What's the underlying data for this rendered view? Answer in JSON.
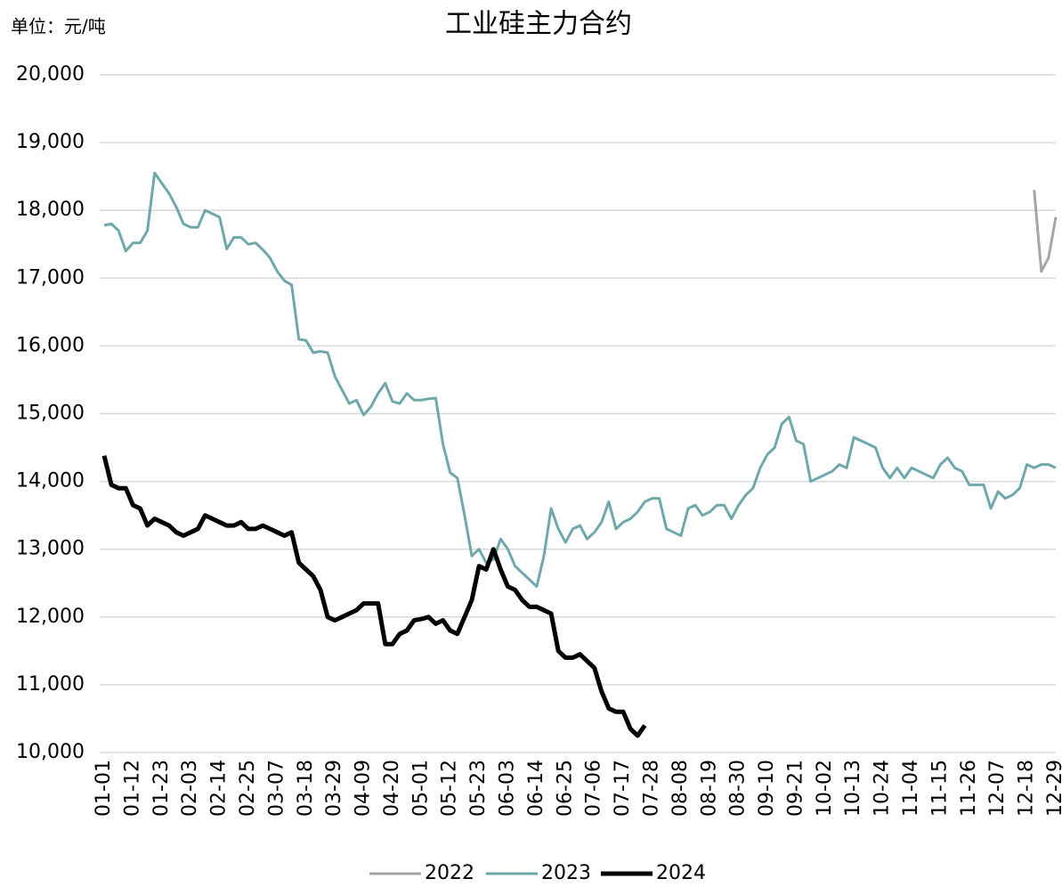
{
  "chart_data": {
    "type": "line",
    "title": "工业硅主力合约",
    "unit_label": "单位：元/吨",
    "categories": [
      "01-01",
      null,
      null,
      null,
      "01-12",
      null,
      null,
      null,
      "01-23",
      null,
      null,
      null,
      "02-03",
      null,
      null,
      null,
      "02-14",
      null,
      null,
      null,
      "02-25",
      null,
      null,
      null,
      "03-07",
      null,
      null,
      null,
      "03-18",
      null,
      null,
      null,
      "03-29",
      null,
      null,
      null,
      "04-09",
      null,
      null,
      null,
      "04-20",
      null,
      null,
      null,
      "05-01",
      null,
      null,
      null,
      "05-12",
      null,
      null,
      null,
      "05-23",
      null,
      null,
      null,
      "06-03",
      null,
      null,
      null,
      "06-14",
      null,
      null,
      null,
      "06-25",
      null,
      null,
      null,
      "07-06",
      null,
      null,
      null,
      "07-17",
      null,
      null,
      null,
      "07-28",
      null,
      null,
      null,
      "08-08",
      null,
      null,
      null,
      "08-19",
      null,
      null,
      null,
      "08-30",
      null,
      null,
      null,
      "09-10",
      null,
      null,
      null,
      "09-21",
      null,
      null,
      null,
      "10-02",
      null,
      null,
      null,
      "10-13",
      null,
      null,
      null,
      "10-24",
      null,
      null,
      null,
      "11-04",
      null,
      null,
      null,
      "11-15",
      null,
      null,
      null,
      "11-26",
      null,
      null,
      null,
      "12-07",
      null,
      null,
      null,
      "12-18",
      null,
      null,
      null,
      "12-29"
    ],
    "series": [
      {
        "name": "2022",
        "color": "#a6a6a6",
        "width": 3,
        "values": [
          null,
          null,
          null,
          null,
          null,
          null,
          null,
          null,
          null,
          null,
          null,
          null,
          null,
          null,
          null,
          null,
          null,
          null,
          null,
          null,
          null,
          null,
          null,
          null,
          null,
          null,
          null,
          null,
          null,
          null,
          null,
          null,
          null,
          null,
          null,
          null,
          null,
          null,
          null,
          null,
          null,
          null,
          null,
          null,
          null,
          null,
          null,
          null,
          null,
          null,
          null,
          null,
          null,
          null,
          null,
          null,
          null,
          null,
          null,
          null,
          null,
          null,
          null,
          null,
          null,
          null,
          null,
          null,
          null,
          null,
          null,
          null,
          null,
          null,
          null,
          null,
          null,
          null,
          null,
          null,
          null,
          null,
          null,
          null,
          null,
          null,
          null,
          null,
          null,
          null,
          null,
          null,
          null,
          null,
          null,
          null,
          null,
          null,
          null,
          null,
          null,
          null,
          null,
          null,
          null,
          null,
          null,
          null,
          null,
          null,
          null,
          null,
          null,
          null,
          null,
          null,
          null,
          null,
          null,
          null,
          null,
          null,
          null,
          null,
          null,
          null,
          null,
          null,
          null,
          18300,
          17100,
          17300,
          17900
        ]
      },
      {
        "name": "2023",
        "color": "#6fa8aa",
        "width": 3,
        "values": [
          17780,
          17800,
          17700,
          17400,
          17520,
          17520,
          17700,
          18550,
          18400,
          18250,
          18050,
          17800,
          17750,
          17750,
          18000,
          17950,
          17900,
          17430,
          17600,
          17600,
          17500,
          17520,
          17420,
          17300,
          17100,
          16960,
          16900,
          16100,
          16080,
          15900,
          15920,
          15900,
          15550,
          15350,
          15150,
          15200,
          14980,
          15100,
          15300,
          15450,
          15180,
          15150,
          15300,
          15200,
          15200,
          15220,
          15230,
          14550,
          14130,
          14050,
          13500,
          12900,
          13000,
          12800,
          12850,
          13150,
          13000,
          12750,
          12650,
          12550,
          12450,
          12900,
          13600,
          13300,
          13100,
          13300,
          13350,
          13150,
          13250,
          13400,
          13700,
          13300,
          13400,
          13450,
          13550,
          13700,
          13750,
          13750,
          13300,
          13250,
          13200,
          13600,
          13650,
          13500,
          13550,
          13650,
          13650,
          13450,
          13650,
          13800,
          13900,
          14200,
          14400,
          14500,
          14850,
          14950,
          14600,
          14550,
          14000,
          14050,
          14100,
          14150,
          14250,
          14200,
          14650,
          14600,
          14550,
          14500,
          14200,
          14050,
          14200,
          14050,
          14200,
          14150,
          14100,
          14050,
          14250,
          14350,
          14200,
          14150,
          13950,
          13950,
          13950,
          13600,
          13850,
          13750,
          13800,
          13900,
          14250,
          14200,
          14250,
          14250,
          14200
        ]
      },
      {
        "name": "2024",
        "color": "#000000",
        "width": 5,
        "values": [
          14380,
          13950,
          13900,
          13900,
          13650,
          13600,
          13350,
          13450,
          13400,
          13350,
          13250,
          13200,
          13250,
          13300,
          13500,
          13450,
          13400,
          13350,
          13350,
          13400,
          13300,
          13300,
          13350,
          13300,
          13250,
          13200,
          13250,
          12800,
          12700,
          12600,
          12400,
          12000,
          11950,
          12000,
          12050,
          12100,
          12200,
          12200,
          12200,
          11600,
          11600,
          11750,
          11800,
          11950,
          11970,
          12000,
          11900,
          11950,
          11800,
          11750,
          12000,
          12250,
          12750,
          12700,
          13000,
          12700,
          12450,
          12400,
          12250,
          12150,
          12150,
          12100,
          12050,
          11500,
          11400,
          11400,
          11450,
          11350,
          11250,
          10900,
          10650,
          10600,
          10600,
          10350,
          10250,
          10400,
          null,
          null,
          null,
          null,
          null,
          null,
          null,
          null,
          null,
          null,
          null,
          null,
          null,
          null,
          null,
          null,
          null,
          null,
          null,
          null,
          null,
          null,
          null,
          null,
          null,
          null,
          null,
          null,
          null,
          null,
          null,
          null,
          null,
          null,
          null,
          null,
          null,
          null,
          null,
          null,
          null,
          null,
          null,
          null,
          null,
          null,
          null,
          null,
          null,
          null,
          null,
          null,
          null,
          null,
          null,
          null,
          null
        ]
      }
    ],
    "ylim": [
      10000,
      20000
    ],
    "yticks": [
      {
        "value": 10000,
        "label": "10,000"
      },
      {
        "value": 11000,
        "label": "11,000"
      },
      {
        "value": 12000,
        "label": "12,000"
      },
      {
        "value": 13000,
        "label": "13,000"
      },
      {
        "value": 14000,
        "label": "14,000"
      },
      {
        "value": 15000,
        "label": "15,000"
      },
      {
        "value": 16000,
        "label": "16,000"
      },
      {
        "value": 17000,
        "label": "17,000"
      },
      {
        "value": 18000,
        "label": "18,000"
      },
      {
        "value": 19000,
        "label": "19,000"
      },
      {
        "value": 20000,
        "label": "20,000"
      }
    ],
    "grid": true,
    "legend": "bottom"
  }
}
